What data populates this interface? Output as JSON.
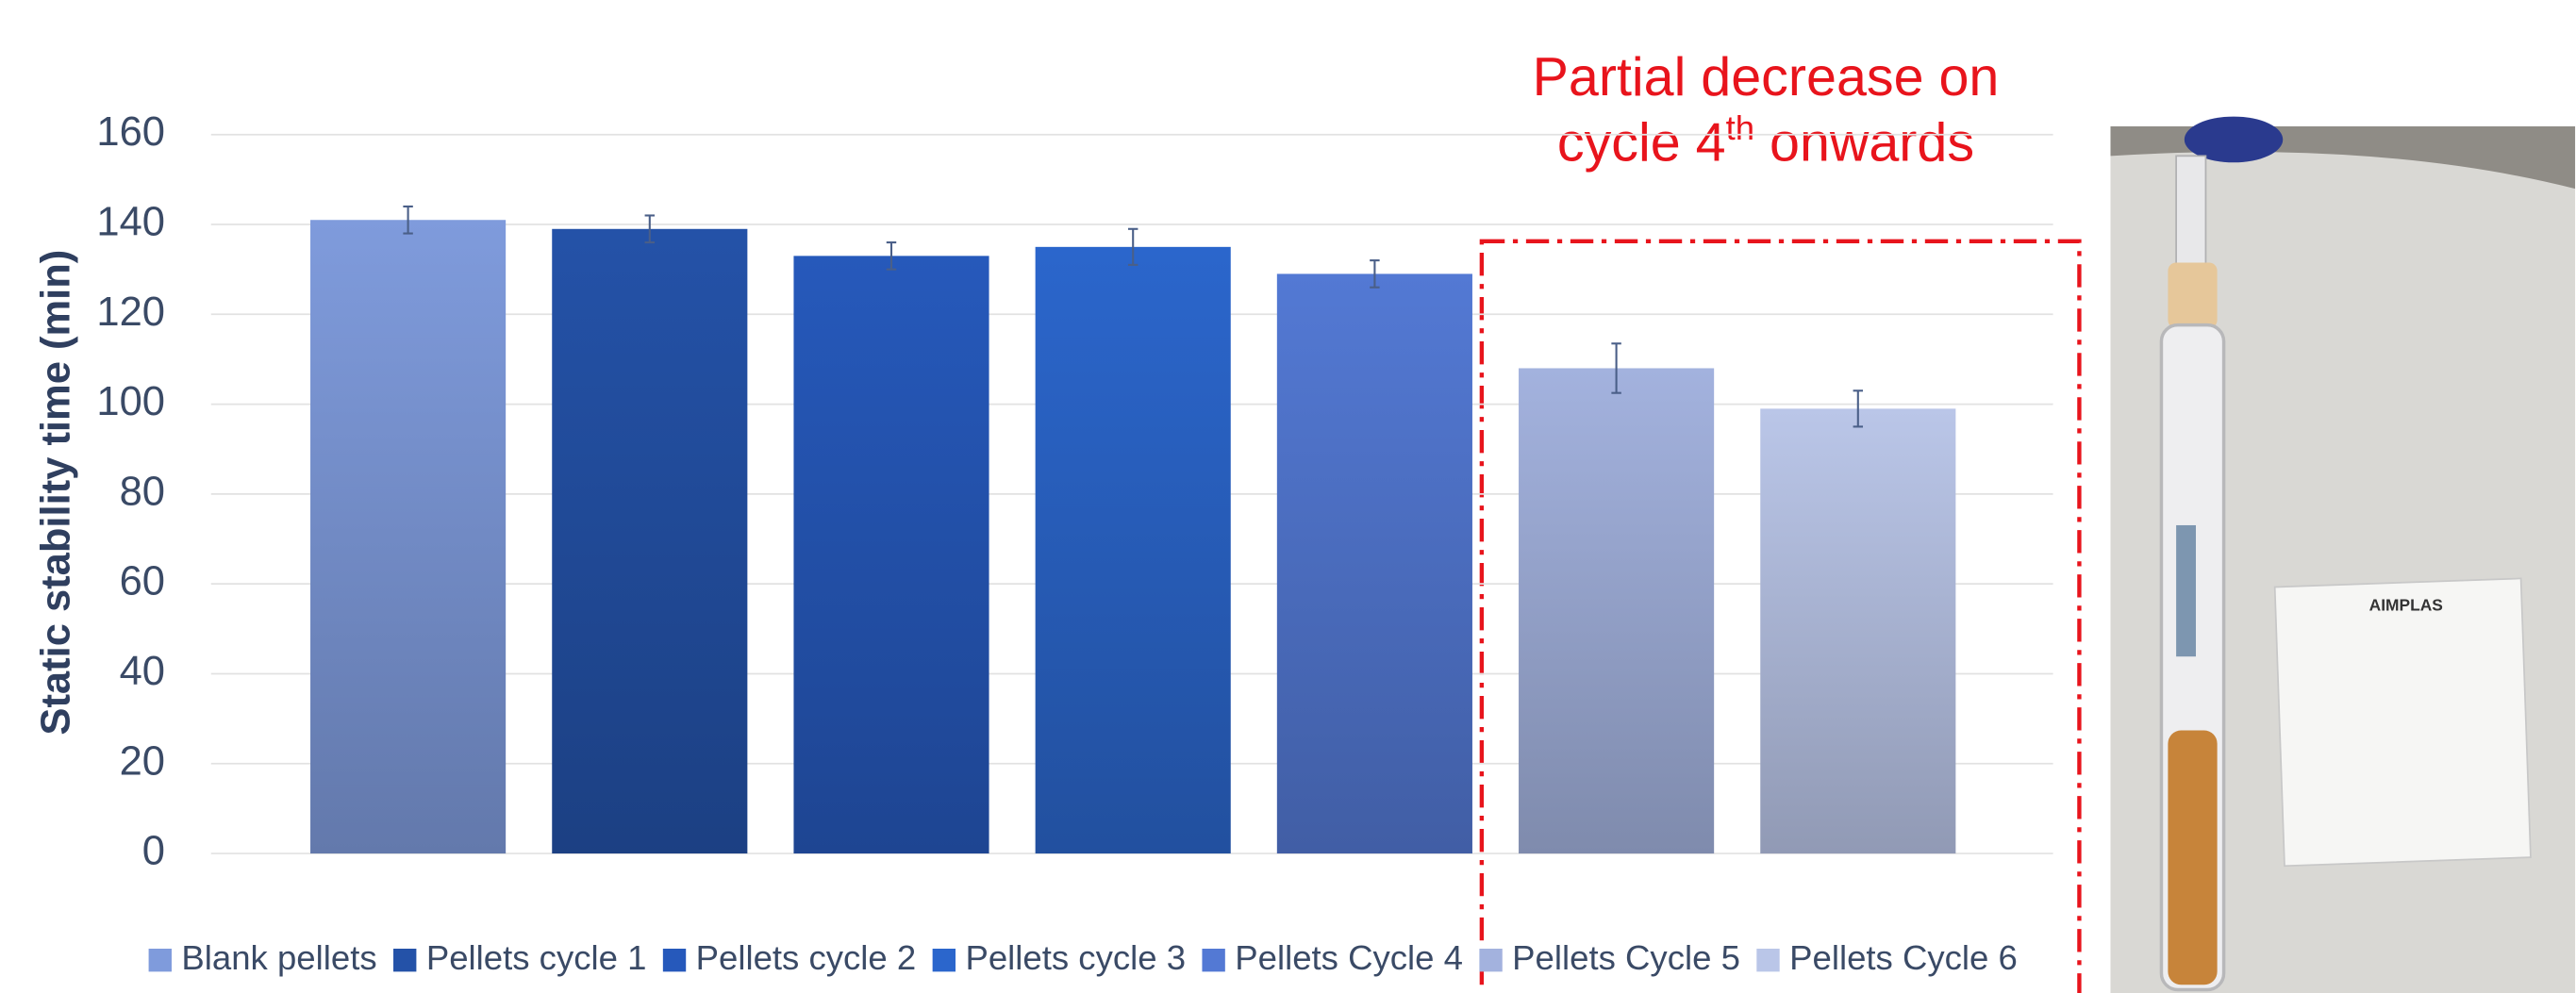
{
  "chart_data": {
    "type": "bar",
    "ylabel": "Static stability time (min)",
    "ylim": [
      0,
      160
    ],
    "yticks": [
      0,
      20,
      40,
      60,
      80,
      100,
      120,
      140,
      160
    ],
    "grid": true,
    "series": [
      {
        "name": "Blank pellets",
        "color": "#7f9bdc",
        "values": [
          141
        ],
        "errors": [
          3
        ]
      },
      {
        "name": "Pellets cycle 1",
        "color": "#2452a8",
        "values": [
          139
        ],
        "errors": [
          3
        ]
      },
      {
        "name": "Pellets cycle 2",
        "color": "#2659bb",
        "values": [
          133
        ],
        "errors": [
          3
        ]
      },
      {
        "name": "Pellets cycle 3",
        "color": "#2b66cc",
        "values": [
          135
        ],
        "errors": [
          4
        ]
      },
      {
        "name": "Pellets Cycle 4",
        "color": "#5379d4",
        "values": [
          129
        ],
        "errors": [
          3
        ]
      },
      {
        "name": "Pellets Cycle 5",
        "color": "#a3b2de",
        "values": [
          108
        ],
        "errors": [
          5.5
        ]
      },
      {
        "name": "Pellets Cycle 6",
        "color": "#bac6e8",
        "values": [
          99
        ],
        "errors": [
          4
        ]
      }
    ],
    "legend": "bottom",
    "annotation": {
      "lines": [
        "Partial decrease  on",
        "cycle 4",
        "th",
        " onwards"
      ],
      "color": "#e8141c"
    },
    "photo_label": "AIMPLAS"
  }
}
